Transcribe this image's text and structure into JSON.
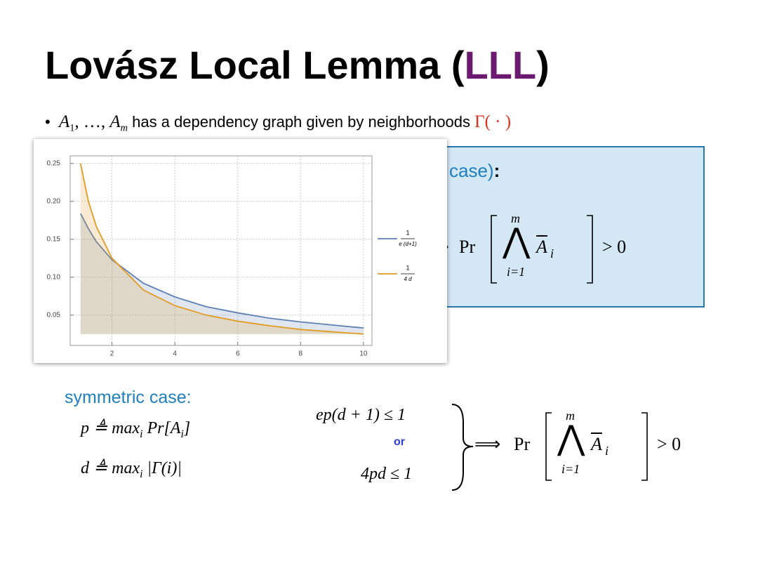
{
  "title": {
    "main": "Lovász Local Lemma (",
    "highlight": "LLL",
    "close": ")"
  },
  "bullet": {
    "a_start": "A",
    "sub_start": "1",
    "dots": ", …, ",
    "a_end": "A",
    "sub_end": "m",
    "text": " has a dependency graph given by neighborhoods ",
    "gamma": "Γ( · )"
  },
  "box": {
    "heading": "case)",
    "colon": ":",
    "conclusion": {
      "implies": "⇒",
      "pr": "Pr",
      "upper": "m",
      "wedge": "⋀",
      "lower": "i=1",
      "var": "A",
      "sub": "i",
      "rhs": "> 0"
    }
  },
  "chart_data": {
    "type": "line",
    "x": [
      1,
      1.25,
      1.5,
      2,
      3,
      4,
      5,
      6,
      7,
      8,
      9,
      10
    ],
    "series": [
      {
        "name_numerator": "1",
        "name_denominator": "e (d+1)",
        "color": "#5e81b5",
        "values": [
          0.184,
          0.164,
          0.147,
          0.123,
          0.092,
          0.074,
          0.061,
          0.053,
          0.046,
          0.041,
          0.037,
          0.033
        ]
      },
      {
        "name_numerator": "1",
        "name_denominator": "4 d",
        "color": "#e19c24",
        "values": [
          0.25,
          0.2,
          0.167,
          0.125,
          0.083,
          0.0625,
          0.05,
          0.042,
          0.036,
          0.031,
          0.028,
          0.025
        ]
      }
    ],
    "xlim": [
      0.67,
      10.27
    ],
    "ylim": [
      0.01,
      0.26
    ],
    "xticks": [
      2,
      4,
      6,
      8,
      10
    ],
    "yticks": [
      0.05,
      {
        "value": 0.1,
        "label": "0.10"
      },
      0.15,
      {
        "value": 0.2,
        "label": "0.20"
      },
      0.25
    ],
    "grid": true,
    "filled": true,
    "legend": "right"
  },
  "symmetric": {
    "heading": "symmetric case:",
    "def_p": [
      "p ≜ max",
      "i",
      " Pr[A",
      "i",
      "]"
    ],
    "def_d": [
      "d ≜ max",
      "i",
      " |Γ(i)|"
    ],
    "cond1": "ep(d + 1) ≤ 1",
    "or": "or",
    "cond2": "4pd ≤ 1",
    "conclusion": {
      "implies": "⟹",
      "pr": "Pr",
      "upper": "m",
      "wedge": "⋀",
      "lower": "i=1",
      "var": "A",
      "sub": "i",
      "rhs": "> 0"
    }
  }
}
